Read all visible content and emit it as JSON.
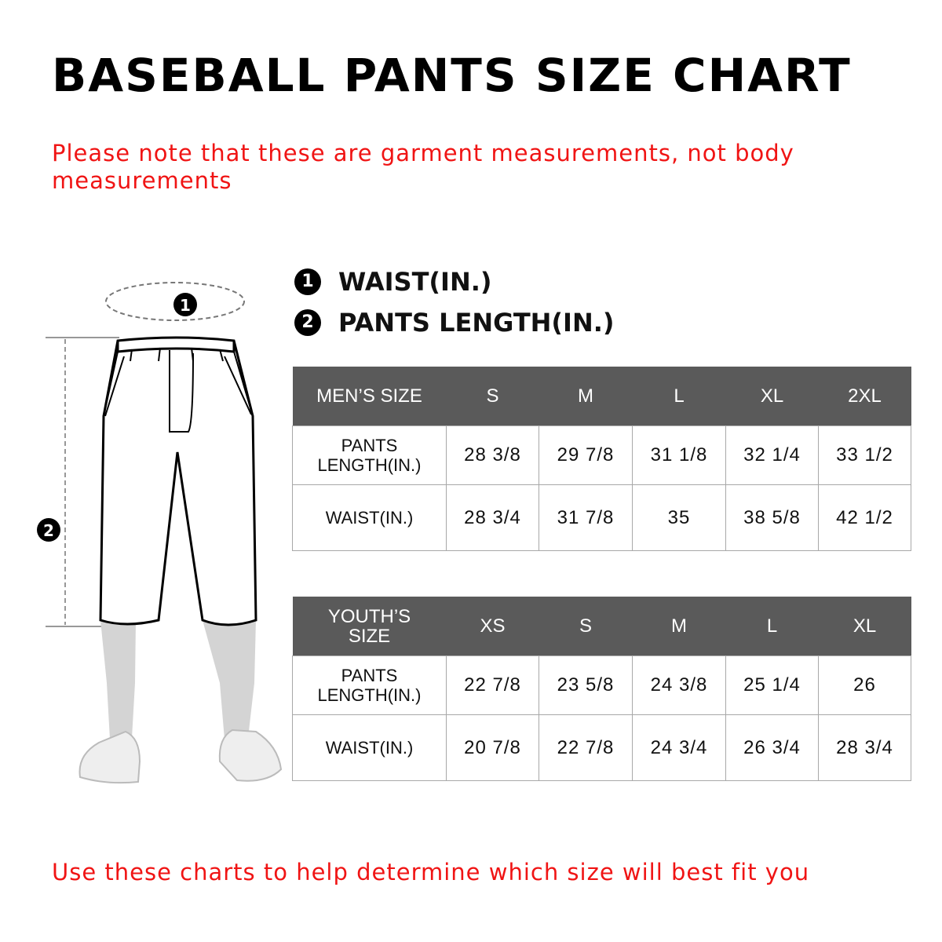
{
  "title": "BASEBALL PANTS SIZE CHART",
  "top_note": "Please note that these are garment measurements, not body measurements",
  "legend": [
    {
      "number": "1",
      "label": "WAIST(IN.)"
    },
    {
      "number": "2",
      "label": "PANTS LENGTH(IN.)"
    }
  ],
  "mens_table": {
    "header": "MEN’S SIZE",
    "sizes": [
      "S",
      "M",
      "L",
      "XL",
      "2XL"
    ],
    "rows": [
      {
        "label": "PANTS LENGTH(IN.)",
        "values": [
          "28 3/8",
          "29 7/8",
          "31 1/8",
          "32 1/4",
          "33 1/2"
        ]
      },
      {
        "label": "WAIST(IN.)",
        "values": [
          "28 3/4",
          "31 7/8",
          "35",
          "38 5/8",
          "42 1/2"
        ]
      }
    ]
  },
  "youth_table": {
    "header": "YOUTH’S SIZE",
    "sizes": [
      "XS",
      "S",
      "M",
      "L",
      "XL"
    ],
    "rows": [
      {
        "label": "PANTS LENGTH(IN.)",
        "values": [
          "22 7/8",
          "23 5/8",
          "24 3/8",
          "25 1/4",
          "26"
        ]
      },
      {
        "label": "WAIST(IN.)",
        "values": [
          "20 7/8",
          "22 7/8",
          "24 3/4",
          "26 3/4",
          "28 3/4"
        ]
      }
    ]
  },
  "illustration": {
    "waist_marker": "1",
    "length_marker": "2"
  },
  "bottom_note": "Use these charts to help determine which size will best fit you",
  "colors": {
    "accent_red": "#f01414",
    "table_header": "#5a5a5a",
    "border": "#a8a8a8"
  }
}
